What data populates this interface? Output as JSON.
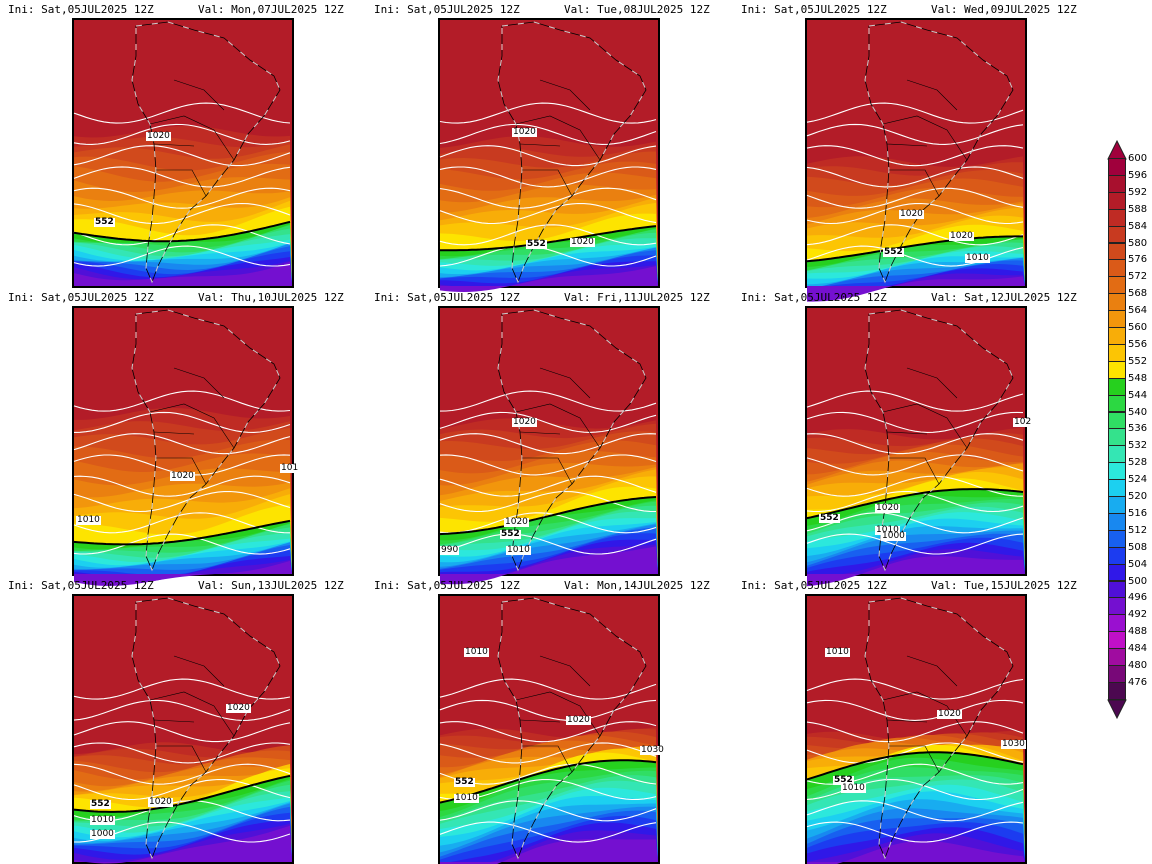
{
  "panels": [
    {
      "ini": "Ini: Sat,05JUL2025 12Z",
      "val": "Val: Mon,07JUL2025 12Z",
      "labels": [
        "1020",
        "552"
      ]
    },
    {
      "ini": "Ini: Sat,05JUL2025 12Z",
      "val": "Val: Tue,08JUL2025 12Z",
      "labels": [
        "1020",
        "1020",
        "552"
      ]
    },
    {
      "ini": "Ini: Sat,05JUL2025 12Z",
      "val": "Val: Wed,09JUL2025 12Z",
      "labels": [
        "1020",
        "1020",
        "552",
        "1010"
      ]
    },
    {
      "ini": "Ini: Sat,05JUL2025 12Z",
      "val": "Val: Thu,10JUL2025 12Z",
      "labels": [
        "1020",
        "1010",
        "101"
      ]
    },
    {
      "ini": "Ini: Sat,05JUL2025 12Z",
      "val": "Val: Fri,11JUL2025 12Z",
      "labels": [
        "1020",
        "1020",
        "552",
        "1010",
        "990"
      ]
    },
    {
      "ini": "Ini: Sat,05JUL2025 12Z",
      "val": "Val: Sat,12JUL2025 12Z",
      "labels": [
        "102",
        "1020",
        "552",
        "1010",
        "1000"
      ]
    },
    {
      "ini": "Ini: Sat,05JUL2025 12Z",
      "val": "Val: Sun,13JUL2025 12Z",
      "labels": [
        "1020",
        "1020",
        "552",
        "1010",
        "1000"
      ]
    },
    {
      "ini": "Ini: Sat,05JUL2025 12Z",
      "val": "Val: Mon,14JUL2025 12Z",
      "labels": [
        "1010",
        "1020",
        "1030",
        "552",
        "1010"
      ]
    },
    {
      "ini": "Ini: Sat,05JUL2025 12Z",
      "val": "Val: Tue,15JUL2025 12Z",
      "labels": [
        "1010",
        "1020",
        "1030",
        "552",
        "1010"
      ]
    }
  ],
  "colorbar": {
    "levels": [
      "600",
      "596",
      "592",
      "588",
      "584",
      "580",
      "576",
      "572",
      "568",
      "564",
      "560",
      "556",
      "552",
      "548",
      "544",
      "540",
      "536",
      "532",
      "528",
      "524",
      "520",
      "516",
      "512",
      "508",
      "504",
      "500",
      "496",
      "492",
      "488",
      "484",
      "480",
      "476"
    ],
    "colors": [
      "#a0003c",
      "#a8102e",
      "#b31c28",
      "#bf2b24",
      "#c83a20",
      "#d14a1c",
      "#da5a18",
      "#e26c14",
      "#ea8010",
      "#f2960c",
      "#f8ad08",
      "#fcc504",
      "#fde400",
      "#26d01e",
      "#2cd842",
      "#30de64",
      "#34e28c",
      "#34e6b4",
      "#2ce8dc",
      "#1cd0f0",
      "#18acf0",
      "#1888f0",
      "#1860f0",
      "#1c3cf0",
      "#3018e8",
      "#5010d8",
      "#7410d0",
      "#9a10d0",
      "#c010c8",
      "#a00ca0",
      "#780878",
      "#4c0850"
    ]
  }
}
